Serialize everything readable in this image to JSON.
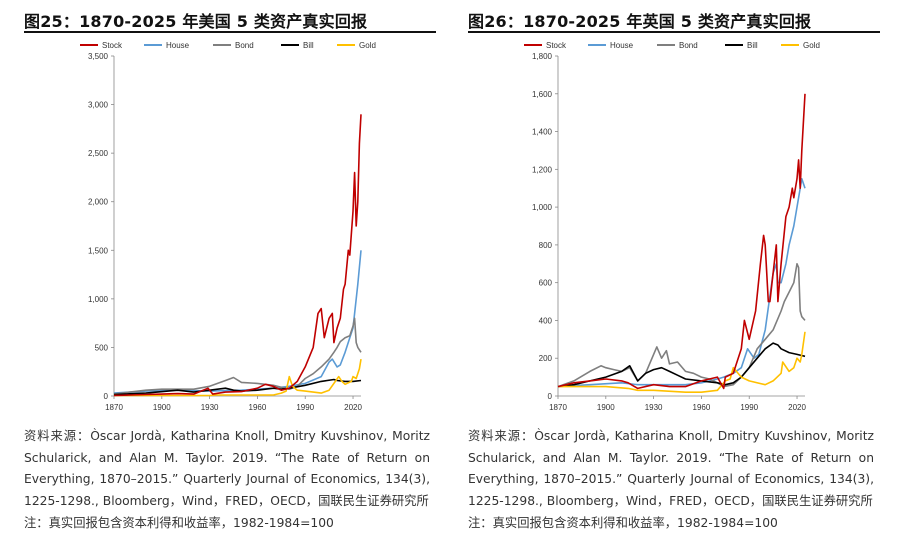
{
  "panels": [
    {
      "title": "图25：1870-2025 年美国 5 类资产真实回报",
      "source_lines": [
        "资料来源：Òscar Jordà, Katharina Knoll, Dmitry Kuvshinov, Moritz Schularick, and Alan M. Taylor. 2019. “The Rate of Return on Everything, 1870–2015.” Quarterly Journal of Economics, 134(3), 1225-1298., Bloomberg，Wind，FRED，OECD，国联民生证券研究所",
        "注：真实回报包含资本利得和收益率，1982-1984=100"
      ]
    },
    {
      "title": "图26：1870-2025 年英国 5 类资产真实回报",
      "source_lines": [
        "资料来源：Òscar Jordà, Katharina Knoll, Dmitry Kuvshinov, Moritz Schularick, and Alan M. Taylor. 2019. “The Rate of Return on Everything, 1870–2015.” Quarterly Journal of Economics, 134(3), 1225-1298., Bloomberg，Wind，FRED，OECD，国联民生证券研究所",
        "注：真实回报包含资本利得和收益率，1982-1984=100"
      ]
    }
  ],
  "chart_data": [
    {
      "type": "line",
      "title": "图25：1870-2025 年美国 5 类资产真实回报",
      "xlabel": "",
      "ylabel": "",
      "xlim": [
        1870,
        2025
      ],
      "ylim": [
        0,
        3500
      ],
      "xticks": [
        1870,
        1900,
        1930,
        1960,
        1990,
        2020
      ],
      "xtick_labels": [
        "1870",
        "1900",
        "1930",
        "1960",
        "1990",
        "2020"
      ],
      "yticks": [
        0,
        500,
        1000,
        1500,
        2000,
        2500,
        3000,
        3500
      ],
      "ytick_labels": [
        "0",
        "500",
        "1,000",
        "1,500",
        "2,000",
        "2,500",
        "3,000",
        "3,500"
      ],
      "legend_position": "top",
      "grid": false,
      "series": [
        {
          "name": "Stock",
          "color": "#c00000",
          "x": [
            1870,
            1880,
            1890,
            1900,
            1910,
            1920,
            1929,
            1932,
            1940,
            1950,
            1960,
            1965,
            1970,
            1975,
            1980,
            1985,
            1990,
            1995,
            1998,
            2000,
            2002,
            2005,
            2007,
            2008,
            2010,
            2012,
            2014,
            2015,
            2017,
            2018,
            2020,
            2021,
            2022,
            2023,
            2024,
            2025
          ],
          "y": [
            5,
            10,
            15,
            20,
            25,
            20,
            80,
            20,
            40,
            45,
            80,
            120,
            100,
            60,
            80,
            150,
            300,
            500,
            850,
            900,
            600,
            800,
            850,
            550,
            700,
            800,
            1100,
            1150,
            1500,
            1450,
            1900,
            2300,
            1750,
            2000,
            2600,
            2900
          ]
        },
        {
          "name": "House",
          "color": "#5b9bd5",
          "x": [
            1870,
            1890,
            1910,
            1930,
            1950,
            1960,
            1970,
            1980,
            1990,
            2000,
            2005,
            2007,
            2010,
            2012,
            2015,
            2018,
            2020,
            2022,
            2023,
            2025
          ],
          "y": [
            30,
            50,
            60,
            50,
            60,
            70,
            80,
            100,
            130,
            200,
            350,
            380,
            300,
            320,
            450,
            600,
            700,
            1000,
            1150,
            1500
          ]
        },
        {
          "name": "Bond",
          "color": "#7f7f7f",
          "x": [
            1870,
            1880,
            1890,
            1900,
            1910,
            1920,
            1930,
            1940,
            1945,
            1950,
            1960,
            1970,
            1975,
            1980,
            1985,
            1990,
            1995,
            2000,
            2005,
            2008,
            2010,
            2012,
            2015,
            2018,
            2020,
            2021,
            2022,
            2023,
            2025
          ],
          "y": [
            20,
            40,
            60,
            70,
            70,
            70,
            100,
            160,
            190,
            140,
            130,
            110,
            90,
            70,
            100,
            180,
            230,
            300,
            380,
            450,
            500,
            560,
            600,
            620,
            720,
            800,
            550,
            500,
            450
          ]
        },
        {
          "name": "Bill",
          "color": "#000000",
          "x": [
            1870,
            1890,
            1910,
            1920,
            1930,
            1940,
            1945,
            1950,
            1960,
            1970,
            1975,
            1980,
            1990,
            2000,
            2008,
            2010,
            2015,
            2020,
            2025
          ],
          "y": [
            15,
            30,
            60,
            40,
            60,
            80,
            60,
            50,
            60,
            80,
            70,
            80,
            110,
            150,
            170,
            160,
            150,
            150,
            160
          ]
        },
        {
          "name": "Gold",
          "color": "#ffc000",
          "x": [
            1870,
            1900,
            1930,
            1934,
            1950,
            1960,
            1970,
            1975,
            1978,
            1980,
            1982,
            1985,
            1990,
            2000,
            2005,
            2011,
            2013,
            2015,
            2019,
            2020,
            2022,
            2024,
            2025
          ],
          "y": [
            5,
            5,
            5,
            10,
            10,
            10,
            10,
            30,
            50,
            200,
            100,
            60,
            50,
            30,
            60,
            200,
            150,
            120,
            150,
            200,
            180,
            280,
            380
          ]
        }
      ]
    },
    {
      "type": "line",
      "title": "图26：1870-2025 年英国 5 类资产真实回报",
      "xlabel": "",
      "ylabel": "",
      "xlim": [
        1870,
        2025
      ],
      "ylim": [
        0,
        1800
      ],
      "xticks": [
        1870,
        1900,
        1930,
        1960,
        1990,
        2020
      ],
      "xtick_labels": [
        "1870",
        "1900",
        "1930",
        "1960",
        "1990",
        "2020"
      ],
      "yticks": [
        0,
        200,
        400,
        600,
        800,
        1000,
        1200,
        1400,
        1600,
        1800
      ],
      "ytick_labels": [
        "0",
        "200",
        "400",
        "600",
        "800",
        "1,000",
        "1,200",
        "1,400",
        "1,600",
        "1,800"
      ],
      "legend_position": "top",
      "grid": false,
      "series": [
        {
          "name": "Stock",
          "color": "#c00000",
          "x": [
            1870,
            1880,
            1890,
            1900,
            1910,
            1914,
            1920,
            1930,
            1940,
            1950,
            1960,
            1970,
            1974,
            1975,
            1980,
            1985,
            1987,
            1990,
            1994,
            1997,
            1999,
            2000,
            2002,
            2003,
            2007,
            2008,
            2010,
            2013,
            2015,
            2017,
            2018,
            2020,
            2021,
            2022,
            2023,
            2025
          ],
          "y": [
            50,
            70,
            80,
            90,
            80,
            70,
            40,
            60,
            50,
            50,
            80,
            100,
            40,
            100,
            120,
            250,
            400,
            300,
            450,
            700,
            850,
            800,
            500,
            500,
            800,
            500,
            700,
            950,
            1000,
            1100,
            1050,
            1150,
            1250,
            1100,
            1300,
            1600
          ]
        },
        {
          "name": "House",
          "color": "#5b9bd5",
          "x": [
            1870,
            1890,
            1910,
            1920,
            1940,
            1950,
            1960,
            1970,
            1974,
            1980,
            1985,
            1989,
            1993,
            1996,
            2000,
            2005,
            2007,
            2008,
            2010,
            2013,
            2015,
            2018,
            2020,
            2022,
            2023,
            2025
          ],
          "y": [
            50,
            60,
            70,
            60,
            60,
            60,
            70,
            90,
            100,
            120,
            150,
            250,
            200,
            220,
            350,
            650,
            700,
            600,
            600,
            700,
            800,
            900,
            1000,
            1100,
            1150,
            1100
          ]
        },
        {
          "name": "Bond",
          "color": "#7f7f7f",
          "x": [
            1870,
            1880,
            1890,
            1897,
            1900,
            1905,
            1910,
            1915,
            1920,
            1925,
            1932,
            1935,
            1938,
            1940,
            1945,
            1950,
            1955,
            1960,
            1965,
            1970,
            1974,
            1980,
            1985,
            1990,
            1995,
            2000,
            2005,
            2010,
            2012,
            2015,
            2018,
            2020,
            2021,
            2022,
            2023,
            2025
          ],
          "y": [
            50,
            80,
            130,
            160,
            150,
            140,
            130,
            150,
            80,
            120,
            260,
            200,
            240,
            170,
            180,
            130,
            120,
            100,
            90,
            70,
            50,
            60,
            100,
            150,
            250,
            300,
            350,
            450,
            500,
            550,
            600,
            700,
            680,
            450,
            420,
            400
          ]
        },
        {
          "name": "Bill",
          "color": "#000000",
          "x": [
            1870,
            1880,
            1890,
            1900,
            1910,
            1915,
            1920,
            1925,
            1930,
            1935,
            1940,
            1945,
            1950,
            1960,
            1970,
            1975,
            1980,
            1985,
            1990,
            1995,
            2000,
            2005,
            2008,
            2010,
            2015,
            2020,
            2025
          ],
          "y": [
            50,
            60,
            80,
            100,
            130,
            160,
            80,
            120,
            140,
            150,
            130,
            110,
            90,
            80,
            70,
            60,
            70,
            100,
            150,
            200,
            250,
            280,
            270,
            250,
            230,
            220,
            210
          ]
        },
        {
          "name": "Gold",
          "color": "#ffc000",
          "x": [
            1870,
            1900,
            1914,
            1920,
            1930,
            1950,
            1960,
            1970,
            1975,
            1978,
            1980,
            1985,
            1990,
            2000,
            2005,
            2010,
            2011,
            2015,
            2018,
            2020,
            2022,
            2023,
            2025
          ],
          "y": [
            50,
            50,
            40,
            30,
            30,
            20,
            20,
            30,
            80,
            90,
            150,
            100,
            80,
            60,
            80,
            120,
            180,
            130,
            150,
            200,
            180,
            220,
            340
          ]
        }
      ]
    }
  ]
}
